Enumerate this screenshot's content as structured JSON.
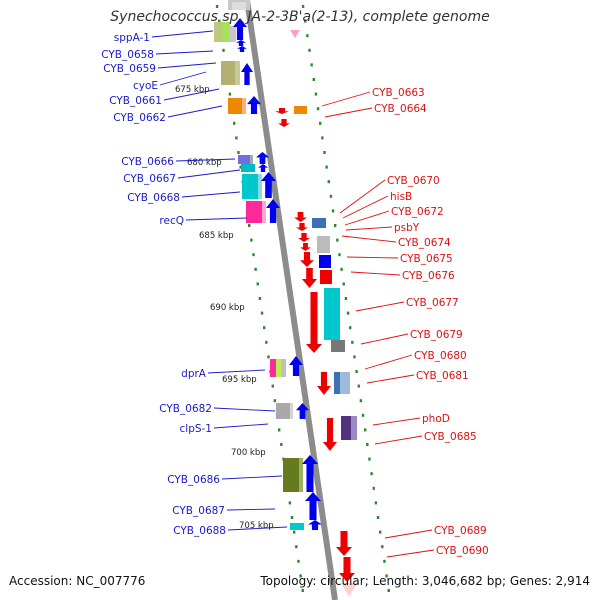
{
  "title": "Synechococcus sp. JA-2-3B'a(2-13), complete genome",
  "footer": {
    "accession_label": "Accession:",
    "accession": "NC_007776",
    "topology_label": "Topology:",
    "topology": "circular",
    "length_label": "Length:",
    "length": "3,046,682 bp",
    "genes_label": "Genes:",
    "genes": "2,914"
  },
  "colors": {
    "forward_label": "#1a1acc",
    "reverse_label": "#dd1111",
    "forward_arrow": "#0000ee",
    "reverse_arrow": "#ee0000",
    "backbone": "#8c8c8c",
    "tick": "#2a8a2a"
  },
  "scale_labels": [
    "675 kbp",
    "680 kbp",
    "685 kbp",
    "690 kbp",
    "695 kbp",
    "700 kbp",
    "705 kbp"
  ],
  "forward_genes": [
    {
      "name": "sppA-1"
    },
    {
      "name": "CYB_0658"
    },
    {
      "name": "CYB_0659"
    },
    {
      "name": "cyoE"
    },
    {
      "name": "CYB_0661"
    },
    {
      "name": "CYB_0662"
    },
    {
      "name": "CYB_0666"
    },
    {
      "name": "CYB_0667"
    },
    {
      "name": "CYB_0668"
    },
    {
      "name": "recQ"
    },
    {
      "name": "dprA"
    },
    {
      "name": "CYB_0682"
    },
    {
      "name": "clpS-1"
    },
    {
      "name": "CYB_0686"
    },
    {
      "name": "CYB_0687"
    },
    {
      "name": "CYB_0688"
    }
  ],
  "reverse_genes": [
    {
      "name": "CYB_0663"
    },
    {
      "name": "CYB_0664"
    },
    {
      "name": "CYB_0670"
    },
    {
      "name": "hisB"
    },
    {
      "name": "CYB_0672"
    },
    {
      "name": "psbY"
    },
    {
      "name": "CYB_0674"
    },
    {
      "name": "CYB_0675"
    },
    {
      "name": "CYB_0676"
    },
    {
      "name": "CYB_0677"
    },
    {
      "name": "CYB_0679"
    },
    {
      "name": "CYB_0680"
    },
    {
      "name": "CYB_0681"
    },
    {
      "name": "phoD"
    },
    {
      "name": "CYB_0685"
    },
    {
      "name": "CYB_0689"
    },
    {
      "name": "CYB_0690"
    }
  ]
}
